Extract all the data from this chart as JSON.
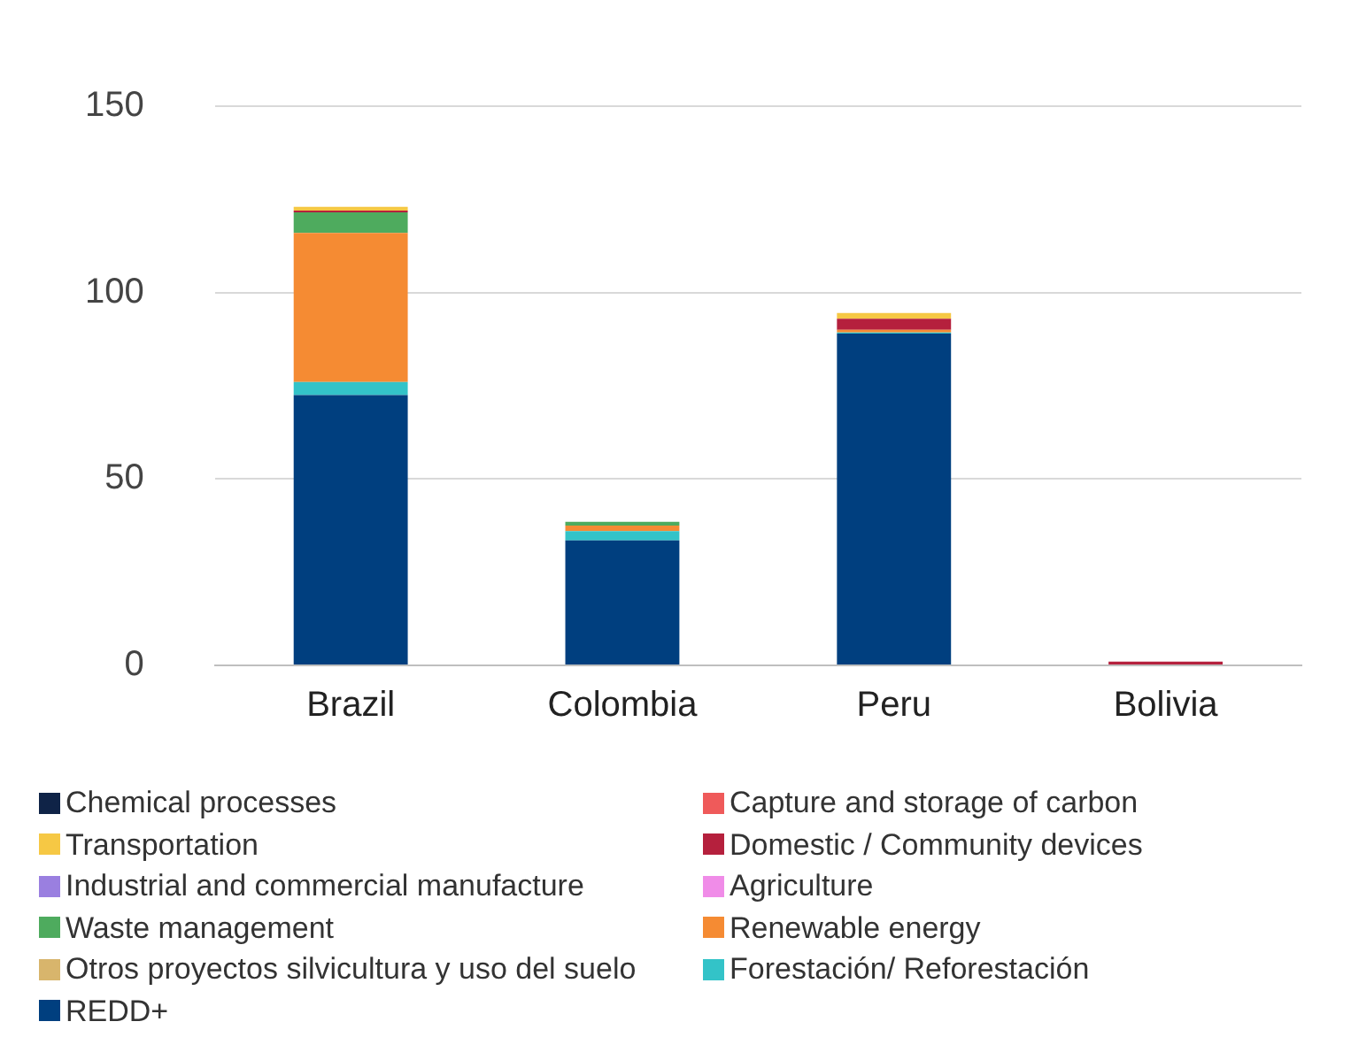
{
  "chart_data": {
    "type": "bar",
    "stacked": true,
    "categories": [
      "Brazil",
      "Colombia",
      "Peru",
      "Bolivia"
    ],
    "ylim": [
      0,
      150
    ],
    "yticks": [
      0,
      50,
      100,
      150
    ],
    "grid": "y",
    "legend": "bottom",
    "series": [
      {
        "name": "REDD+",
        "color": "#003f7f",
        "values": [
          72.5,
          33.5,
          89,
          0
        ]
      },
      {
        "name": "Forestación/ Reforestación",
        "color": "#33c3c8",
        "values": [
          3.5,
          2.5,
          0.3,
          0
        ]
      },
      {
        "name": "Otros proyectos silvicultura y uso del suelo",
        "color": "#d8b56c",
        "values": [
          0,
          0,
          0,
          0
        ]
      },
      {
        "name": "Renewable energy",
        "color": "#f58b33",
        "values": [
          40,
          1.5,
          0.7,
          0
        ]
      },
      {
        "name": "Waste management",
        "color": "#4eab5e",
        "values": [
          5.5,
          1,
          0,
          0
        ]
      },
      {
        "name": "Agriculture",
        "color": "#f08ce8",
        "values": [
          0,
          0,
          0,
          0
        ]
      },
      {
        "name": "Industrial and commercial manufacture",
        "color": "#9a7fe0",
        "values": [
          0,
          0,
          0,
          0
        ]
      },
      {
        "name": "Domestic / Community devices",
        "color": "#b5203d",
        "values": [
          0.5,
          0,
          3,
          1
        ]
      },
      {
        "name": "Transportation",
        "color": "#f6c844",
        "values": [
          1,
          0,
          1.5,
          0
        ]
      },
      {
        "name": "Capture and storage of carbon",
        "color": "#ef5a5a",
        "values": [
          0,
          0,
          0,
          0
        ]
      },
      {
        "name": "Chemical processes",
        "color": "#0f2347",
        "values": [
          0,
          0,
          0,
          0
        ]
      }
    ]
  }
}
